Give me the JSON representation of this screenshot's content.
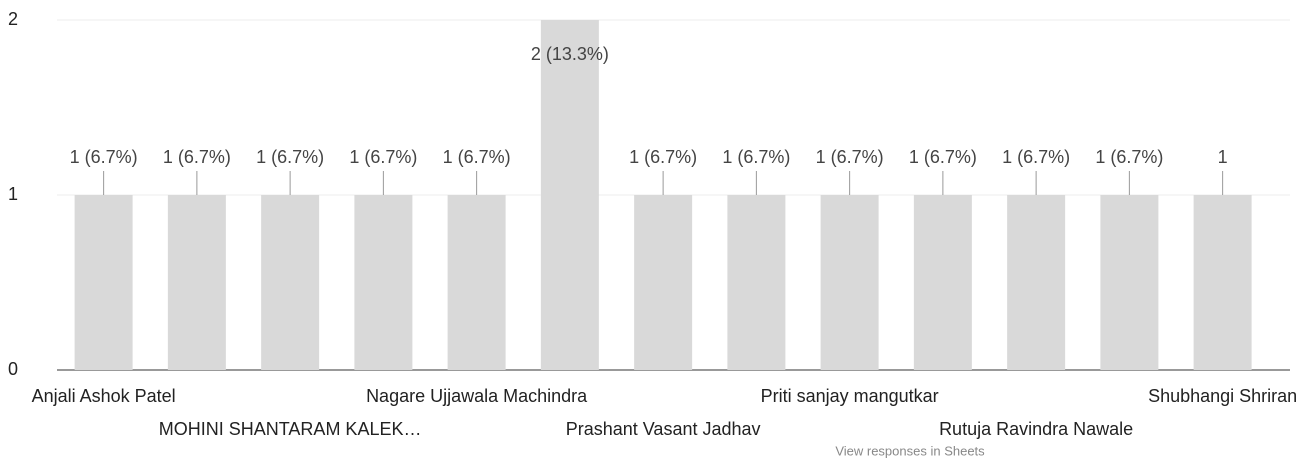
{
  "chart_data": {
    "type": "bar",
    "categories": [
      "Anjali Ashok Patel",
      null,
      "MOHINI SHANTARAM KALEK…",
      null,
      "Nagare Ujjawala Machindra",
      null,
      "Prashant Vasant Jadhav",
      null,
      "Priti sanjay mangutkar",
      null,
      "Rutuja Ravindra Nawale",
      null,
      "Shubhangi Shriran"
    ],
    "values": [
      1,
      1,
      1,
      1,
      1,
      2,
      1,
      1,
      1,
      1,
      1,
      1,
      1
    ],
    "value_labels": [
      "1 (6.7%)",
      "1 (6.7%)",
      "1 (6.7%)",
      "1 (6.7%)",
      "1 (6.7%)",
      "2 (13.3%)",
      "1 (6.7%)",
      "1 (6.7%)",
      "1 (6.7%)",
      "1 (6.7%)",
      "1 (6.7%)",
      "1 (6.7%)",
      "1"
    ],
    "color": "#d9d9d9",
    "ylim": [
      0,
      2
    ],
    "yticks": [
      0,
      1,
      2
    ],
    "grid": true,
    "link": "View responses in Sheets"
  }
}
